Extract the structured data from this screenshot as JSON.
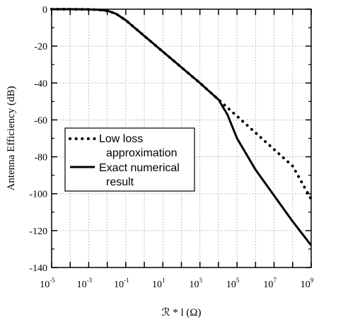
{
  "chart_data": {
    "type": "line",
    "title": "",
    "xlabel": "ℛ * l (Ω)",
    "ylabel": "Antenna Efficiency (dB)",
    "x_scale": "log",
    "xlim": [
      1e-05,
      1000000000.0
    ],
    "ylim": [
      -140,
      0
    ],
    "x_ticks": [
      {
        "base": "10",
        "exp": "-5"
      },
      {
        "base": "10",
        "exp": "-3"
      },
      {
        "base": "10",
        "exp": "-1"
      },
      {
        "base": "10",
        "exp": "1"
      },
      {
        "base": "10",
        "exp": "3"
      },
      {
        "base": "10",
        "exp": "5"
      },
      {
        "base": "10",
        "exp": "7"
      },
      {
        "base": "10",
        "exp": "9"
      }
    ],
    "y_ticks": [
      "0",
      "-20",
      "-40",
      "-60",
      "-80",
      "-100",
      "-120",
      "-140"
    ],
    "grid": true,
    "legend_position": "center-left",
    "series": [
      {
        "name": "Low loss approximation",
        "legend_lines": [
          "Low loss",
          "approximation"
        ],
        "style": "dotted",
        "x": [
          1e-05,
          0.0001,
          0.001,
          0.003,
          0.01,
          0.03,
          0.1,
          1,
          10,
          100,
          1000,
          10000.0,
          100000.0,
          1000000.0,
          10000000.0,
          100000000.0,
          1000000000.0
        ],
        "y": [
          0,
          0,
          -0.1,
          -0.3,
          -0.8,
          -2.5,
          -6,
          -14.5,
          -23,
          -31.5,
          -40,
          -49,
          -58,
          -67,
          -76,
          -85,
          -103
        ]
      },
      {
        "name": "Exact numerical result",
        "legend_lines": [
          "Exact numerical",
          "result"
        ],
        "style": "solid",
        "x": [
          1e-05,
          0.0001,
          0.001,
          0.003,
          0.01,
          0.03,
          0.1,
          1,
          10,
          100,
          1000,
          10000.0,
          30000.0,
          100000.0,
          1000000.0,
          10000000.0,
          100000000.0,
          1000000000.0
        ],
        "y": [
          0,
          0,
          -0.1,
          -0.3,
          -0.8,
          -2.5,
          -6,
          -14.5,
          -23,
          -31.5,
          -40,
          -49,
          -57,
          -70,
          -87,
          -101,
          -115,
          -128
        ]
      }
    ]
  }
}
